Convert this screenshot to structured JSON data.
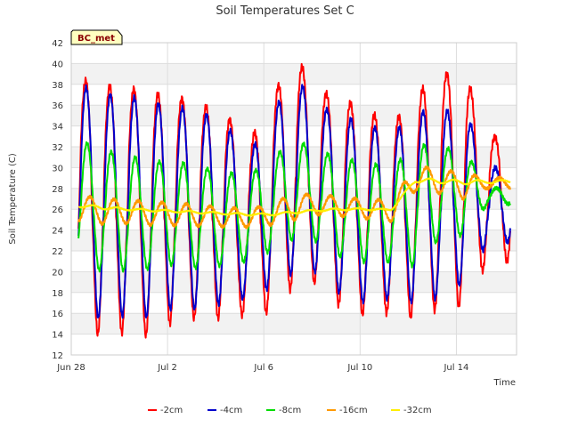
{
  "chart_data": {
    "type": "line",
    "title": "Soil Temperatures Set C",
    "xlabel": "Time",
    "ylabel": "Soil Temperature (C)",
    "site_label": "BC_met",
    "x_domain": [
      "2023-06-28",
      "2023-07-16"
    ],
    "xlim": [
      0,
      18.5
    ],
    "ylim": [
      12,
      42
    ],
    "yticks": [
      12,
      14,
      16,
      18,
      20,
      22,
      24,
      26,
      28,
      30,
      32,
      34,
      36,
      38,
      40,
      42
    ],
    "xticks": [
      {
        "value": 0,
        "label": "Jun 28"
      },
      {
        "value": 4,
        "label": "Jul 2"
      },
      {
        "value": 8,
        "label": "Jul 6"
      },
      {
        "value": 12,
        "label": "Jul 10"
      },
      {
        "value": 16,
        "label": "Jul 14"
      }
    ],
    "grid": true,
    "legend_position": "bottom",
    "days": [
      0.3,
      1.3,
      2.3,
      3.3,
      4.3,
      5.3,
      6.3,
      7.3,
      8.3,
      9.3,
      10.3,
      11.3,
      12.3,
      13.3,
      14.3,
      15.3,
      16.3,
      17.3
    ],
    "series": [
      {
        "name": "-2cm",
        "color": "#ff0000",
        "peak_phase": 0.6,
        "smooth": 0,
        "max": [
          38.6,
          37.8,
          37.8,
          37.0,
          37.0,
          35.8,
          35.8,
          31.8,
          36.7,
          40.6,
          37.4,
          36.5,
          35.5,
          34.0,
          37.0,
          38.9,
          39.4,
          33.0
        ],
        "min": [
          14.8,
          13.8,
          14.2,
          13.8,
          15.3,
          15.6,
          15.5,
          15.9,
          16.1,
          18.8,
          19.0,
          16.3,
          15.8,
          16.1,
          15.5,
          16.5,
          16.7,
          21.0
        ]
      },
      {
        "name": "-4cm",
        "color": "#0000cc",
        "peak_phase": 0.62,
        "smooth": 0.3,
        "max": [
          38.0,
          37.0,
          37.0,
          36.2,
          36.0,
          35.2,
          34.8,
          30.8,
          35.2,
          38.6,
          36.0,
          34.8,
          34.3,
          33.0,
          35.5,
          35.2,
          36.0,
          30.0
        ],
        "min": [
          16.0,
          15.5,
          15.8,
          15.6,
          16.6,
          16.4,
          17.0,
          17.5,
          18.5,
          20.0,
          20.0,
          17.6,
          17.0,
          17.5,
          17.0,
          17.5,
          19.0,
          22.8
        ]
      },
      {
        "name": "-8cm",
        "color": "#00dd00",
        "peak_phase": 0.66,
        "smooth": 0.5,
        "max": [
          32.7,
          31.7,
          31.2,
          30.6,
          30.6,
          30.1,
          29.6,
          29.2,
          30.8,
          32.7,
          31.6,
          30.8,
          30.6,
          29.8,
          32.4,
          31.8,
          31.9,
          28.0
        ],
        "min": [
          20.5,
          20.1,
          20.1,
          20.3,
          20.7,
          20.3,
          20.6,
          21.0,
          22.0,
          23.2,
          22.9,
          21.2,
          20.9,
          20.9,
          20.5,
          23.2,
          23.5,
          26.5
        ]
      },
      {
        "name": "-16cm",
        "color": "#ff9900",
        "peak_phase": 0.78,
        "smooth": 0.6,
        "max": [
          27.4,
          27.0,
          26.9,
          26.7,
          26.6,
          26.4,
          26.2,
          26.0,
          26.5,
          27.5,
          27.4,
          27.1,
          27.0,
          26.8,
          30.2,
          29.8,
          29.5,
          29.0
        ],
        "min": [
          24.8,
          24.6,
          24.6,
          24.5,
          24.4,
          24.4,
          24.3,
          24.3,
          24.5,
          25.0,
          25.5,
          25.3,
          25.1,
          24.8,
          27.8,
          27.5,
          27.0,
          28.0
        ]
      },
      {
        "name": "-32cm",
        "color": "#ffee00",
        "peak_phase": 0.9,
        "smooth": 0.9,
        "max": [
          26.5,
          26.3,
          26.1,
          26.0,
          25.9,
          25.8,
          25.7,
          25.6,
          25.6,
          25.8,
          26.0,
          26.1,
          26.1,
          26.0,
          29.0,
          28.9,
          28.8,
          28.8
        ],
        "min": [
          26.2,
          26.0,
          25.9,
          25.8,
          25.7,
          25.6,
          25.5,
          25.4,
          25.4,
          25.6,
          25.8,
          25.9,
          25.9,
          25.9,
          28.6,
          28.5,
          28.4,
          28.5
        ]
      }
    ]
  }
}
